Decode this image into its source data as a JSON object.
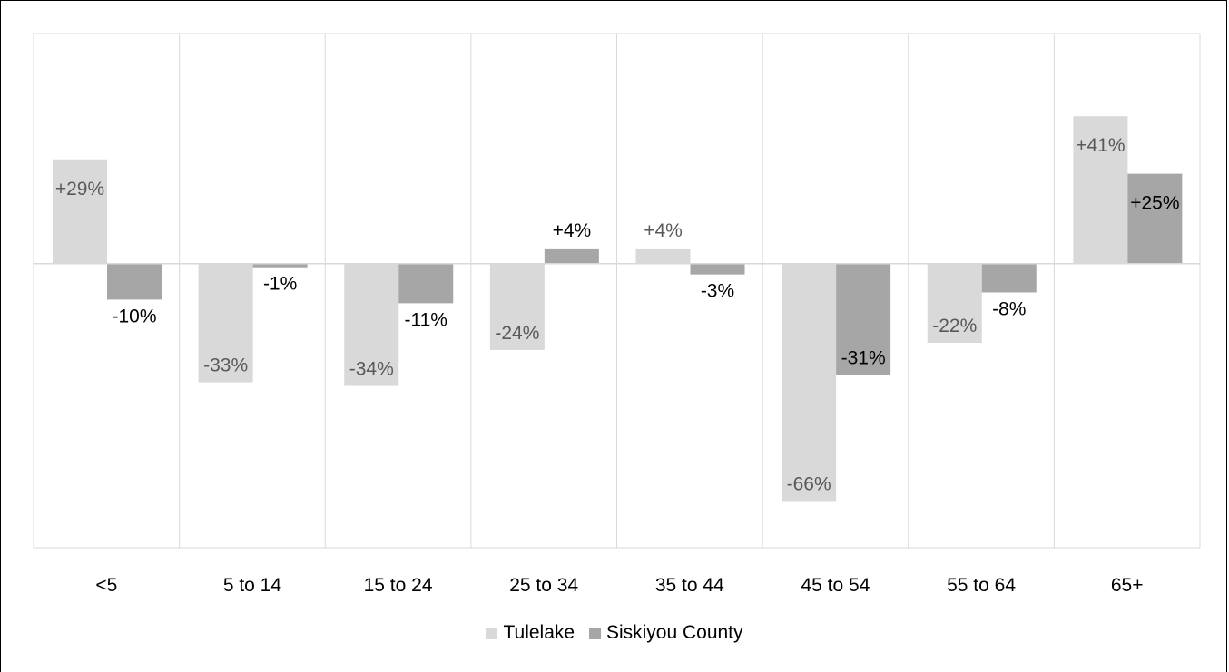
{
  "chart_data": {
    "type": "bar",
    "categories": [
      "<5",
      "5 to 14",
      "15 to 24",
      "25 to 34",
      "35 to 44",
      "45 to 54",
      "55 to 64",
      "65+"
    ],
    "series": [
      {
        "name": "Tulelake",
        "color": "#d9d9d9",
        "values": [
          29,
          -33,
          -34,
          -24,
          4,
          -66,
          -22,
          41
        ],
        "labels": [
          "+29%",
          "-33%",
          "-34%",
          "-24%",
          "+4%",
          "-66%",
          "-22%",
          "+41%"
        ]
      },
      {
        "name": "Siskiyou County",
        "color": "#a6a6a6",
        "values": [
          -10,
          -1,
          -11,
          4,
          -3,
          -31,
          -8,
          25
        ],
        "labels": [
          "-10%",
          "-1%",
          "-11%",
          "+4%",
          "-3%",
          "-31%",
          "-8%",
          "+25%"
        ]
      }
    ],
    "ylim": [
      -79,
      64
    ],
    "grid": "vertical",
    "legend_position": "bottom",
    "title": "",
    "xlabel": "",
    "ylabel": ""
  }
}
